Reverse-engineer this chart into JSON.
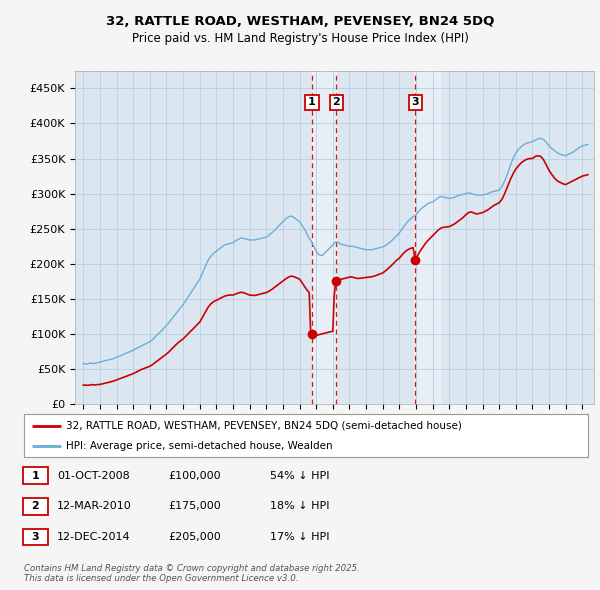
{
  "title1": "32, RATTLE ROAD, WESTHAM, PEVENSEY, BN24 5DQ",
  "title2": "Price paid vs. HM Land Registry's House Price Index (HPI)",
  "ylabel_ticks": [
    "£0",
    "£50K",
    "£100K",
    "£150K",
    "£200K",
    "£250K",
    "£300K",
    "£350K",
    "£400K",
    "£450K"
  ],
  "ytick_values": [
    0,
    50000,
    100000,
    150000,
    200000,
    250000,
    300000,
    350000,
    400000,
    450000
  ],
  "ylim": [
    0,
    475000
  ],
  "xlim_start": 1994.5,
  "xlim_end": 2025.7,
  "legend_line1": "32, RATTLE ROAD, WESTHAM, PEVENSEY, BN24 5DQ (semi-detached house)",
  "legend_line2": "HPI: Average price, semi-detached house, Wealden",
  "sale1_date": 2008.75,
  "sale1_label": "1",
  "sale1_price": 100000,
  "sale1_date_str": "01-OCT-2008",
  "sale1_price_str": "£100,000",
  "sale1_hpi": "54% ↓ HPI",
  "sale2_date": 2010.2,
  "sale2_label": "2",
  "sale2_price": 175000,
  "sale2_date_str": "12-MAR-2010",
  "sale2_price_str": "£175,000",
  "sale2_hpi": "18% ↓ HPI",
  "sale3_date": 2014.95,
  "sale3_label": "3",
  "sale3_price": 205000,
  "sale3_date_str": "12-DEC-2014",
  "sale3_price_str": "£205,000",
  "sale3_hpi": "17% ↓ HPI",
  "red_color": "#cc0000",
  "blue_color": "#6baed6",
  "plot_bg": "#dce6f1",
  "grid_color": "#b8cfe0",
  "shade_color": "#c5d8ee",
  "footer": "Contains HM Land Registry data © Crown copyright and database right 2025.\nThis data is licensed under the Open Government Licence v3.0.",
  "hpi_data": [
    [
      1995.0,
      58000
    ],
    [
      1995.08,
      57500
    ],
    [
      1995.17,
      57000
    ],
    [
      1995.25,
      57200
    ],
    [
      1995.33,
      58000
    ],
    [
      1995.42,
      58500
    ],
    [
      1995.5,
      58200
    ],
    [
      1995.58,
      57800
    ],
    [
      1995.67,
      58000
    ],
    [
      1995.75,
      58500
    ],
    [
      1995.83,
      59000
    ],
    [
      1995.92,
      59500
    ],
    [
      1996.0,
      60000
    ],
    [
      1996.17,
      61000
    ],
    [
      1996.33,
      62000
    ],
    [
      1996.5,
      63000
    ],
    [
      1996.67,
      64000
    ],
    [
      1996.83,
      65000
    ],
    [
      1997.0,
      67000
    ],
    [
      1997.17,
      68500
    ],
    [
      1997.33,
      70000
    ],
    [
      1997.5,
      72000
    ],
    [
      1997.67,
      73500
    ],
    [
      1997.83,
      75000
    ],
    [
      1998.0,
      77000
    ],
    [
      1998.17,
      79000
    ],
    [
      1998.33,
      81000
    ],
    [
      1998.5,
      83000
    ],
    [
      1998.67,
      85000
    ],
    [
      1998.83,
      87000
    ],
    [
      1999.0,
      89000
    ],
    [
      1999.17,
      92000
    ],
    [
      1999.33,
      96000
    ],
    [
      1999.5,
      100000
    ],
    [
      1999.67,
      104000
    ],
    [
      1999.83,
      108000
    ],
    [
      2000.0,
      112000
    ],
    [
      2000.17,
      117000
    ],
    [
      2000.33,
      122000
    ],
    [
      2000.5,
      127000
    ],
    [
      2000.67,
      132000
    ],
    [
      2000.83,
      137000
    ],
    [
      2001.0,
      142000
    ],
    [
      2001.17,
      148000
    ],
    [
      2001.33,
      154000
    ],
    [
      2001.5,
      160000
    ],
    [
      2001.67,
      166000
    ],
    [
      2001.83,
      172000
    ],
    [
      2002.0,
      178000
    ],
    [
      2002.17,
      187000
    ],
    [
      2002.33,
      196000
    ],
    [
      2002.5,
      205000
    ],
    [
      2002.67,
      211000
    ],
    [
      2002.83,
      215000
    ],
    [
      2003.0,
      218000
    ],
    [
      2003.17,
      221000
    ],
    [
      2003.33,
      224000
    ],
    [
      2003.5,
      227000
    ],
    [
      2003.67,
      228000
    ],
    [
      2003.83,
      229000
    ],
    [
      2004.0,
      230000
    ],
    [
      2004.17,
      233000
    ],
    [
      2004.33,
      235000
    ],
    [
      2004.5,
      237000
    ],
    [
      2004.67,
      236000
    ],
    [
      2004.83,
      235000
    ],
    [
      2005.0,
      234000
    ],
    [
      2005.17,
      234000
    ],
    [
      2005.33,
      234000
    ],
    [
      2005.5,
      235000
    ],
    [
      2005.67,
      236000
    ],
    [
      2005.83,
      237000
    ],
    [
      2006.0,
      238000
    ],
    [
      2006.17,
      241000
    ],
    [
      2006.33,
      244000
    ],
    [
      2006.5,
      248000
    ],
    [
      2006.67,
      252000
    ],
    [
      2006.83,
      256000
    ],
    [
      2007.0,
      260000
    ],
    [
      2007.17,
      264000
    ],
    [
      2007.33,
      267000
    ],
    [
      2007.5,
      268000
    ],
    [
      2007.67,
      266000
    ],
    [
      2007.83,
      263000
    ],
    [
      2008.0,
      260000
    ],
    [
      2008.08,
      257000
    ],
    [
      2008.17,
      254000
    ],
    [
      2008.25,
      251000
    ],
    [
      2008.33,
      248000
    ],
    [
      2008.42,
      244000
    ],
    [
      2008.5,
      240000
    ],
    [
      2008.58,
      236000
    ],
    [
      2008.67,
      233000
    ],
    [
      2008.75,
      230000
    ],
    [
      2008.83,
      226000
    ],
    [
      2008.92,
      222000
    ],
    [
      2009.0,
      218000
    ],
    [
      2009.08,
      215000
    ],
    [
      2009.17,
      213000
    ],
    [
      2009.25,
      212000
    ],
    [
      2009.33,
      212000
    ],
    [
      2009.42,
      213000
    ],
    [
      2009.5,
      215000
    ],
    [
      2009.58,
      217000
    ],
    [
      2009.67,
      219000
    ],
    [
      2009.75,
      221000
    ],
    [
      2009.83,
      223000
    ],
    [
      2009.92,
      225000
    ],
    [
      2010.0,
      227000
    ],
    [
      2010.08,
      229000
    ],
    [
      2010.17,
      231000
    ],
    [
      2010.25,
      231000
    ],
    [
      2010.33,
      230000
    ],
    [
      2010.42,
      229000
    ],
    [
      2010.5,
      228000
    ],
    [
      2010.67,
      227000
    ],
    [
      2010.83,
      226000
    ],
    [
      2011.0,
      225000
    ],
    [
      2011.17,
      225000
    ],
    [
      2011.33,
      224000
    ],
    [
      2011.5,
      223000
    ],
    [
      2011.67,
      222000
    ],
    [
      2011.83,
      221000
    ],
    [
      2012.0,
      220000
    ],
    [
      2012.17,
      220000
    ],
    [
      2012.33,
      220000
    ],
    [
      2012.5,
      221000
    ],
    [
      2012.67,
      222000
    ],
    [
      2012.83,
      223000
    ],
    [
      2013.0,
      224000
    ],
    [
      2013.17,
      226000
    ],
    [
      2013.33,
      229000
    ],
    [
      2013.5,
      232000
    ],
    [
      2013.67,
      236000
    ],
    [
      2013.83,
      240000
    ],
    [
      2014.0,
      244000
    ],
    [
      2014.17,
      250000
    ],
    [
      2014.33,
      255000
    ],
    [
      2014.5,
      260000
    ],
    [
      2014.67,
      264000
    ],
    [
      2014.83,
      267000
    ],
    [
      2015.0,
      270000
    ],
    [
      2015.17,
      275000
    ],
    [
      2015.33,
      279000
    ],
    [
      2015.5,
      282000
    ],
    [
      2015.67,
      285000
    ],
    [
      2015.83,
      287000
    ],
    [
      2016.0,
      288000
    ],
    [
      2016.17,
      291000
    ],
    [
      2016.33,
      294000
    ],
    [
      2016.5,
      296000
    ],
    [
      2016.67,
      295000
    ],
    [
      2016.83,
      294000
    ],
    [
      2017.0,
      293000
    ],
    [
      2017.17,
      294000
    ],
    [
      2017.33,
      295000
    ],
    [
      2017.5,
      297000
    ],
    [
      2017.67,
      298000
    ],
    [
      2017.83,
      299000
    ],
    [
      2018.0,
      300000
    ],
    [
      2018.17,
      301000
    ],
    [
      2018.33,
      300000
    ],
    [
      2018.5,
      299000
    ],
    [
      2018.67,
      298000
    ],
    [
      2018.83,
      298000
    ],
    [
      2019.0,
      298000
    ],
    [
      2019.17,
      299000
    ],
    [
      2019.33,
      300000
    ],
    [
      2019.5,
      302000
    ],
    [
      2019.67,
      303000
    ],
    [
      2019.83,
      304000
    ],
    [
      2020.0,
      305000
    ],
    [
      2020.17,
      310000
    ],
    [
      2020.33,
      318000
    ],
    [
      2020.5,
      328000
    ],
    [
      2020.67,
      340000
    ],
    [
      2020.83,
      350000
    ],
    [
      2021.0,
      358000
    ],
    [
      2021.17,
      363000
    ],
    [
      2021.33,
      367000
    ],
    [
      2021.5,
      370000
    ],
    [
      2021.67,
      372000
    ],
    [
      2021.83,
      373000
    ],
    [
      2022.0,
      374000
    ],
    [
      2022.17,
      376000
    ],
    [
      2022.33,
      378000
    ],
    [
      2022.5,
      379000
    ],
    [
      2022.67,
      377000
    ],
    [
      2022.83,
      373000
    ],
    [
      2023.0,
      368000
    ],
    [
      2023.17,
      364000
    ],
    [
      2023.33,
      361000
    ],
    [
      2023.5,
      358000
    ],
    [
      2023.67,
      356000
    ],
    [
      2023.83,
      355000
    ],
    [
      2024.0,
      354000
    ],
    [
      2024.17,
      356000
    ],
    [
      2024.33,
      358000
    ],
    [
      2024.5,
      360000
    ],
    [
      2024.67,
      363000
    ],
    [
      2024.83,
      366000
    ],
    [
      2025.0,
      368000
    ],
    [
      2025.17,
      369000
    ],
    [
      2025.33,
      370000
    ]
  ],
  "sale_data_before1": [
    [
      1995.0,
      27000
    ],
    [
      1995.08,
      27200
    ],
    [
      1995.17,
      27000
    ],
    [
      1995.25,
      26800
    ],
    [
      1995.33,
      27000
    ],
    [
      1995.42,
      27500
    ],
    [
      1995.5,
      27800
    ],
    [
      1995.58,
      27600
    ],
    [
      1995.67,
      27400
    ],
    [
      1995.75,
      27500
    ],
    [
      1995.83,
      27800
    ],
    [
      1995.92,
      28000
    ],
    [
      1996.0,
      28200
    ],
    [
      1996.17,
      29000
    ],
    [
      1996.33,
      30000
    ],
    [
      1996.5,
      31000
    ],
    [
      1996.67,
      32000
    ],
    [
      1996.83,
      33000
    ],
    [
      1997.0,
      34500
    ],
    [
      1997.17,
      36000
    ],
    [
      1997.33,
      37500
    ],
    [
      1997.5,
      39000
    ],
    [
      1997.67,
      40500
    ],
    [
      1997.83,
      42000
    ],
    [
      1998.0,
      43500
    ],
    [
      1998.17,
      45500
    ],
    [
      1998.33,
      47500
    ],
    [
      1998.5,
      49500
    ],
    [
      1998.67,
      51000
    ],
    [
      1998.83,
      52500
    ],
    [
      1999.0,
      54000
    ],
    [
      1999.17,
      56500
    ],
    [
      1999.33,
      59500
    ],
    [
      1999.5,
      62500
    ],
    [
      1999.67,
      65500
    ],
    [
      1999.83,
      68500
    ],
    [
      2000.0,
      71500
    ],
    [
      2000.17,
      75000
    ],
    [
      2000.33,
      79000
    ],
    [
      2000.5,
      83000
    ],
    [
      2000.67,
      87000
    ],
    [
      2000.83,
      90000
    ],
    [
      2001.0,
      93000
    ],
    [
      2001.17,
      97000
    ],
    [
      2001.33,
      101000
    ],
    [
      2001.5,
      105000
    ],
    [
      2001.67,
      109000
    ],
    [
      2001.83,
      113000
    ],
    [
      2002.0,
      117000
    ],
    [
      2002.17,
      124000
    ],
    [
      2002.33,
      131000
    ],
    [
      2002.5,
      138000
    ],
    [
      2002.67,
      143000
    ],
    [
      2002.83,
      146000
    ],
    [
      2003.0,
      148000
    ],
    [
      2003.17,
      150000
    ],
    [
      2003.33,
      152000
    ],
    [
      2003.5,
      154000
    ],
    [
      2003.67,
      155000
    ],
    [
      2003.83,
      155500
    ],
    [
      2004.0,
      155500
    ],
    [
      2004.17,
      157000
    ],
    [
      2004.33,
      158500
    ],
    [
      2004.5,
      159500
    ],
    [
      2004.67,
      158500
    ],
    [
      2004.83,
      157000
    ],
    [
      2005.0,
      155500
    ],
    [
      2005.17,
      155000
    ],
    [
      2005.33,
      155000
    ],
    [
      2005.5,
      156000
    ],
    [
      2005.67,
      157000
    ],
    [
      2005.83,
      158000
    ],
    [
      2006.0,
      159000
    ],
    [
      2006.17,
      161000
    ],
    [
      2006.33,
      163500
    ],
    [
      2006.5,
      166500
    ],
    [
      2006.67,
      169500
    ],
    [
      2006.83,
      172500
    ],
    [
      2007.0,
      175500
    ],
    [
      2007.17,
      178500
    ],
    [
      2007.33,
      181000
    ],
    [
      2007.5,
      182500
    ],
    [
      2007.67,
      181500
    ],
    [
      2007.83,
      180000
    ],
    [
      2008.0,
      178000
    ],
    [
      2008.08,
      175500
    ],
    [
      2008.17,
      172500
    ],
    [
      2008.25,
      169500
    ],
    [
      2008.33,
      166500
    ],
    [
      2008.42,
      163500
    ],
    [
      2008.5,
      161000
    ],
    [
      2008.58,
      159000
    ],
    [
      2008.67,
      100500
    ],
    [
      2008.75,
      100000
    ]
  ],
  "sale_data_after1": [
    [
      2008.75,
      100000
    ],
    [
      2008.83,
      99000
    ],
    [
      2008.92,
      98500
    ],
    [
      2009.0,
      98000
    ],
    [
      2009.08,
      98500
    ],
    [
      2009.17,
      99000
    ],
    [
      2009.25,
      99500
    ],
    [
      2009.33,
      100000
    ],
    [
      2009.42,
      100500
    ],
    [
      2009.5,
      101000
    ],
    [
      2009.58,
      101500
    ],
    [
      2009.67,
      102000
    ],
    [
      2009.75,
      102500
    ],
    [
      2009.83,
      103000
    ],
    [
      2009.92,
      103500
    ],
    [
      2010.0,
      104000
    ],
    [
      2010.08,
      154000
    ],
    [
      2010.17,
      174000
    ],
    [
      2010.2,
      175000
    ]
  ],
  "sale_data_after2": [
    [
      2010.2,
      175000
    ],
    [
      2010.25,
      176000
    ],
    [
      2010.33,
      177000
    ],
    [
      2010.42,
      177500
    ],
    [
      2010.5,
      178000
    ],
    [
      2010.58,
      178500
    ],
    [
      2010.67,
      179000
    ],
    [
      2010.75,
      179500
    ],
    [
      2010.83,
      180000
    ],
    [
      2010.92,
      180500
    ],
    [
      2011.0,
      181000
    ],
    [
      2011.08,
      181500
    ],
    [
      2011.17,
      181000
    ],
    [
      2011.25,
      180500
    ],
    [
      2011.33,
      180000
    ],
    [
      2011.42,
      179500
    ],
    [
      2011.5,
      179000
    ],
    [
      2011.67,
      179500
    ],
    [
      2011.83,
      180000
    ],
    [
      2012.0,
      180500
    ],
    [
      2012.17,
      181000
    ],
    [
      2012.33,
      181500
    ],
    [
      2012.5,
      182500
    ],
    [
      2012.67,
      184000
    ],
    [
      2012.83,
      185500
    ],
    [
      2013.0,
      187000
    ],
    [
      2013.17,
      190000
    ],
    [
      2013.33,
      193500
    ],
    [
      2013.5,
      197000
    ],
    [
      2013.67,
      201000
    ],
    [
      2013.83,
      205000
    ],
    [
      2014.0,
      208000
    ],
    [
      2014.17,
      213000
    ],
    [
      2014.33,
      217000
    ],
    [
      2014.5,
      220000
    ],
    [
      2014.67,
      222000
    ],
    [
      2014.83,
      223000
    ],
    [
      2014.95,
      205000
    ]
  ],
  "sale_data_after3": [
    [
      2014.95,
      205000
    ],
    [
      2015.0,
      208000
    ],
    [
      2015.08,
      211000
    ],
    [
      2015.17,
      215000
    ],
    [
      2015.25,
      218000
    ],
    [
      2015.33,
      221000
    ],
    [
      2015.42,
      224000
    ],
    [
      2015.5,
      227000
    ],
    [
      2015.67,
      232000
    ],
    [
      2015.83,
      236000
    ],
    [
      2016.0,
      240000
    ],
    [
      2016.17,
      244000
    ],
    [
      2016.33,
      248000
    ],
    [
      2016.5,
      251000
    ],
    [
      2016.67,
      252000
    ],
    [
      2016.83,
      252500
    ],
    [
      2017.0,
      253000
    ],
    [
      2017.17,
      255000
    ],
    [
      2017.33,
      257000
    ],
    [
      2017.5,
      260000
    ],
    [
      2017.67,
      263000
    ],
    [
      2017.83,
      266000
    ],
    [
      2018.0,
      270000
    ],
    [
      2018.17,
      273000
    ],
    [
      2018.33,
      274000
    ],
    [
      2018.5,
      272000
    ],
    [
      2018.67,
      271000
    ],
    [
      2018.83,
      272000
    ],
    [
      2019.0,
      273000
    ],
    [
      2019.17,
      275000
    ],
    [
      2019.33,
      277000
    ],
    [
      2019.5,
      280000
    ],
    [
      2019.67,
      283000
    ],
    [
      2019.83,
      285000
    ],
    [
      2020.0,
      287000
    ],
    [
      2020.17,
      292000
    ],
    [
      2020.33,
      300000
    ],
    [
      2020.5,
      310000
    ],
    [
      2020.67,
      320000
    ],
    [
      2020.83,
      328000
    ],
    [
      2021.0,
      335000
    ],
    [
      2021.17,
      340000
    ],
    [
      2021.33,
      344000
    ],
    [
      2021.5,
      347000
    ],
    [
      2021.67,
      349000
    ],
    [
      2021.83,
      350000
    ],
    [
      2022.0,
      350000
    ],
    [
      2022.17,
      353000
    ],
    [
      2022.33,
      354000
    ],
    [
      2022.5,
      353000
    ],
    [
      2022.67,
      348000
    ],
    [
      2022.83,
      341000
    ],
    [
      2023.0,
      333000
    ],
    [
      2023.17,
      327000
    ],
    [
      2023.33,
      322000
    ],
    [
      2023.5,
      318000
    ],
    [
      2023.67,
      316000
    ],
    [
      2023.83,
      314000
    ],
    [
      2024.0,
      313000
    ],
    [
      2024.17,
      315000
    ],
    [
      2024.33,
      317000
    ],
    [
      2024.5,
      319000
    ],
    [
      2024.67,
      321000
    ],
    [
      2024.83,
      323000
    ],
    [
      2025.0,
      325000
    ],
    [
      2025.17,
      326000
    ],
    [
      2025.33,
      327000
    ]
  ]
}
